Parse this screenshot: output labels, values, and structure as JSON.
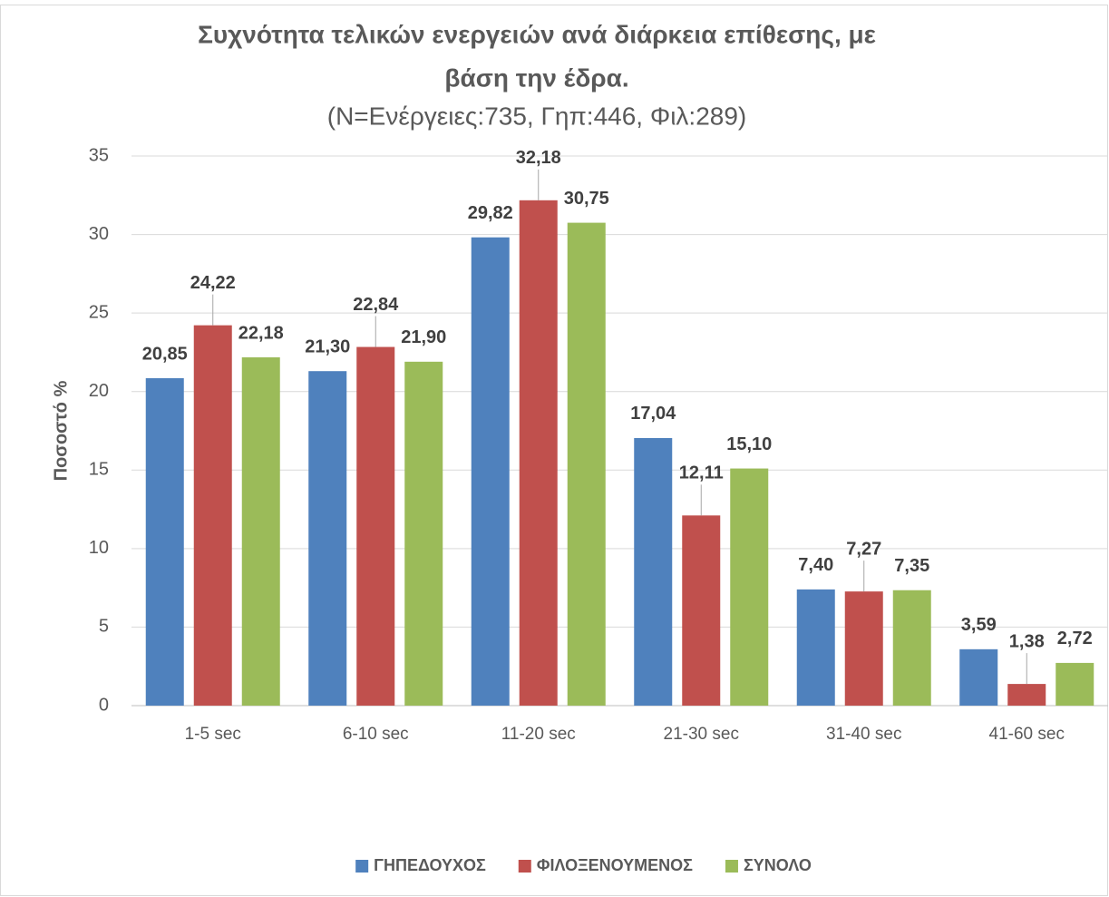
{
  "chart_data": {
    "type": "bar",
    "title": [
      "Συχνότητα τελικών ενεργειών ανά διάρκεια επίθεσης, με",
      "βάση την έδρα."
    ],
    "subtitle": "(Ν=Ενέργειες:735, Γηπ:446, Φιλ:289)",
    "y_label": "Ποσοστό %",
    "categories": [
      "1-5 sec",
      "6-10 sec",
      "11-20 sec",
      "21-30 sec",
      "31-40 sec",
      "41-60 sec"
    ],
    "series": [
      {
        "name": "ΓΗΠΕΔΟΥΧΟΣ",
        "color": "#4f81bd",
        "values": [
          20.85,
          21.3,
          29.82,
          17.04,
          7.4,
          3.59
        ],
        "value_labels": [
          "20,85",
          "21,30",
          "29,82",
          "17,04",
          "7,40",
          "3,59"
        ]
      },
      {
        "name": "ΦΙΛΟΞΕΝΟΥΜΕΝΟΣ",
        "color": "#c0504d",
        "values": [
          24.22,
          22.84,
          32.18,
          12.11,
          7.27,
          1.38
        ],
        "value_labels": [
          "24,22",
          "22,84",
          "32,18",
          "12,11",
          "7,27",
          "1,38"
        ]
      },
      {
        "name": "ΣΥΝΟΛΟ",
        "color": "#9bbb59",
        "values": [
          22.18,
          21.9,
          30.75,
          15.1,
          7.35,
          2.72
        ],
        "value_labels": [
          "22,18",
          "21,90",
          "30,75",
          "15,10",
          "7,35",
          "2,72"
        ]
      }
    ],
    "ylim": [
      0,
      35
    ],
    "yticks": [
      0,
      5,
      10,
      15,
      20,
      25,
      30,
      35
    ],
    "grid": true,
    "legend": "bottom"
  }
}
